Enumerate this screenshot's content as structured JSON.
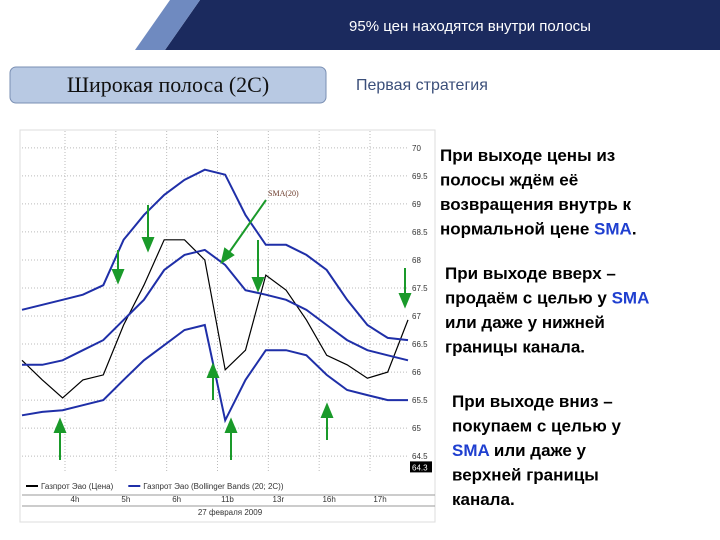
{
  "header": {
    "title": "95% цен находятся внутри полосы"
  },
  "slide": {
    "badge": "Широкая полоса (2С)",
    "subtitle": "Первая стратегия"
  },
  "chart": {
    "annotation": "SMA(20)",
    "ylim": [
      64.2,
      70.3
    ],
    "yticks": [
      70.0,
      69.5,
      69.0,
      68.5,
      68.0,
      67.5,
      67.0,
      66.5,
      66.0,
      65.5,
      65.0,
      64.5
    ],
    "last_price": 64.3,
    "categories": [
      "4h",
      "5h",
      "6h",
      "11b",
      "13r",
      "16h",
      "17h"
    ],
    "date": "27 февраля 2009",
    "series": [
      {
        "name": "Газпрот Эао (Цена)",
        "color": "#000000",
        "values": [
          66.21,
          65.86,
          65.54,
          65.86,
          65.95,
          66.84,
          67.55,
          68.36,
          68.36,
          68.0,
          66.04,
          66.39,
          67.73,
          67.46,
          66.93,
          66.3,
          66.13,
          65.89,
          66.0,
          66.93
        ]
      },
      {
        "name": "Газпрот Эао (Bollinger Bands (20; 2С))",
        "color": "#1f2fa8",
        "values": [
          67.11,
          67.2,
          67.29,
          67.38,
          67.55,
          68.36,
          68.8,
          69.16,
          69.43,
          69.61,
          69.52,
          68.8,
          68.27,
          68.27,
          68.09,
          67.82,
          67.29,
          66.84,
          66.61,
          66.57
        ]
      },
      {
        "color": "#1f2fa8",
        "values": [
          66.13,
          66.13,
          66.21,
          66.39,
          66.57,
          66.93,
          67.29,
          67.82,
          68.09,
          68.18,
          67.91,
          67.46,
          67.38,
          67.29,
          67.11,
          66.84,
          66.57,
          66.39,
          66.3,
          66.21
        ]
      },
      {
        "color": "#1f2fa8",
        "values": [
          65.23,
          65.29,
          65.32,
          65.41,
          65.5,
          65.86,
          66.21,
          66.48,
          66.75,
          66.84,
          65.14,
          65.86,
          66.39,
          66.39,
          66.3,
          65.95,
          65.68,
          65.59,
          65.5,
          65.5
        ]
      }
    ]
  },
  "paragraphs": [
    {
      "lines": [
        [
          {
            "text": "При выходе цены из",
            "color": "#000000"
          }
        ],
        [
          {
            "text": "полосы ждём её",
            "color": "#000000"
          }
        ],
        [
          {
            "text": "возвращения внутрь к",
            "color": "#000000"
          }
        ],
        [
          {
            "text": "нормальной цене ",
            "color": "#000000"
          },
          {
            "text": "SMA",
            "color": "#1f3fd0"
          },
          {
            "text": ".",
            "color": "#000000"
          }
        ]
      ]
    },
    {
      "lines": [
        [
          {
            "text": "При выходе вверх –",
            "color": "#000000"
          }
        ],
        [
          {
            "text": "продаём с целью у ",
            "color": "#000000"
          },
          {
            "text": "SMA",
            "color": "#1f3fd0"
          }
        ],
        [
          {
            "text": "или даже у нижней",
            "color": "#000000"
          }
        ],
        [
          {
            "text": "границы канала.",
            "color": "#000000"
          }
        ]
      ]
    },
    {
      "lines": [
        [
          {
            "text": "При выходе вниз –",
            "color": "#000000"
          }
        ],
        [
          {
            "text": "покупаем с целью у",
            "color": "#000000"
          }
        ],
        [
          {
            "text": "SMA",
            "color": "#1f3fd0"
          },
          {
            "text": " или даже у",
            "color": "#000000"
          }
        ],
        [
          {
            "text": "верхней границы",
            "color": "#000000"
          }
        ],
        [
          {
            "text": "канала.",
            "color": "#000000"
          }
        ]
      ]
    }
  ]
}
